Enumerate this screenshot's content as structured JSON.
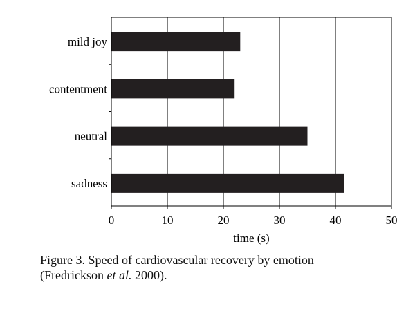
{
  "chart_data": {
    "type": "bar",
    "orientation": "horizontal",
    "categories": [
      "mild joy",
      "contentment",
      "neutral",
      "sadness"
    ],
    "values": [
      23,
      22,
      35,
      41.5
    ],
    "xlabel": "time (s)",
    "ylabel": "",
    "xlim": [
      0,
      50
    ],
    "xticks": [
      0,
      10,
      20,
      30,
      40,
      50
    ],
    "grid": "vertical",
    "bar_color": "#231f20"
  },
  "caption": {
    "lead": "Figure 3.  Speed of cardiovascular recovery by emotion",
    "line2_before": "(Fredrickson ",
    "line2_italic": "et al.",
    "line2_after": " 2000)."
  }
}
